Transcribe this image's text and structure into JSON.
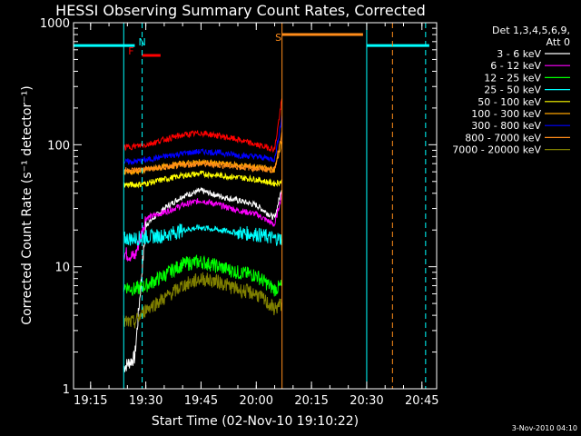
{
  "chart_data": {
    "type": "line",
    "title": "HESSI Observing Summary Count Rates, Corrected",
    "xlabel": "Start Time (02-Nov-10 19:10:22)",
    "ylabel": "Corrected Count Rate (s⁻¹ detector⁻¹)",
    "y_scale": "log",
    "ylim": [
      1,
      1000
    ],
    "xlim": [
      "19:10:22",
      "20:49:00"
    ],
    "x_ticks": [
      "19:15",
      "19:30",
      "19:45",
      "20:00",
      "20:15",
      "20:30",
      "20:45"
    ],
    "y_ticks": [
      "1",
      "10",
      "100",
      "1000"
    ],
    "footer_date": "3-Nov-2010 04:10",
    "legend": {
      "header": [
        "Det 1,3,4,5,6,9,",
        "Att 0"
      ],
      "placement": "top-right outside"
    },
    "series": [
      {
        "name": "3 - 6 keV",
        "color": "#ffffff",
        "x": [
          "19:24",
          "19:27",
          "19:30",
          "19:35",
          "19:40",
          "19:45",
          "19:50",
          "19:55",
          "20:00",
          "20:05",
          "20:07"
        ],
        "values": [
          1.5,
          1.8,
          22,
          30,
          38,
          42,
          38,
          35,
          32,
          25,
          45
        ]
      },
      {
        "name": "6 - 12 keV",
        "color": "#ff00ff",
        "x": [
          "19:24",
          "19:27",
          "19:30",
          "19:35",
          "19:40",
          "19:45",
          "19:50",
          "19:55",
          "20:00",
          "20:05",
          "20:07"
        ],
        "values": [
          13,
          12,
          25,
          28,
          32,
          35,
          32,
          29,
          27,
          22,
          40
        ]
      },
      {
        "name": "12 - 25 keV",
        "color": "#00ff00",
        "x": [
          "19:24",
          "19:27",
          "19:30",
          "19:35",
          "19:40",
          "19:45",
          "19:50",
          "19:55",
          "20:00",
          "20:05",
          "20:07"
        ],
        "values": [
          7,
          6.5,
          7,
          8.5,
          10.5,
          11,
          10,
          9,
          8.5,
          6.5,
          7
        ]
      },
      {
        "name": "25 - 50 keV",
        "color": "#00ffff",
        "x": [
          "19:24",
          "19:27",
          "19:30",
          "19:35",
          "19:40",
          "19:45",
          "19:50",
          "19:55",
          "20:00",
          "20:05",
          "20:07"
        ],
        "values": [
          17,
          17,
          17.5,
          18,
          20,
          21,
          20,
          19,
          18.5,
          17,
          17
        ]
      },
      {
        "name": "50 - 100 keV",
        "color": "#ffff00",
        "x": [
          "19:24",
          "19:27",
          "19:30",
          "19:35",
          "19:40",
          "19:45",
          "19:50",
          "19:55",
          "20:00",
          "20:05",
          "20:07"
        ],
        "values": [
          47,
          47,
          48,
          52,
          56,
          58,
          56,
          54,
          52,
          48,
          50
        ]
      },
      {
        "name": "100 - 300 keV",
        "color": "#ffa500",
        "x": [
          "19:24",
          "19:27",
          "19:30",
          "19:35",
          "19:40",
          "19:45",
          "19:50",
          "19:55",
          "20:00",
          "20:05",
          "20:07"
        ],
        "values": [
          60,
          60,
          62,
          66,
          70,
          72,
          70,
          68,
          66,
          62,
          110
        ]
      },
      {
        "name": "300 - 800 keV",
        "color": "#0000ff",
        "x": [
          "19:24",
          "19:27",
          "19:30",
          "19:35",
          "19:40",
          "19:45",
          "19:50",
          "19:55",
          "20:00",
          "20:05",
          "20:07"
        ],
        "values": [
          72,
          73,
          75,
          80,
          85,
          88,
          86,
          82,
          80,
          76,
          170
        ]
      },
      {
        "name": "800 - 7000 keV",
        "color": "#ff8c1a",
        "x": [
          "19:24",
          "19:27",
          "19:30",
          "19:35",
          "19:40",
          "19:45",
          "19:50",
          "19:55",
          "20:00",
          "20:05",
          "20:07"
        ],
        "values": [
          62,
          62,
          63,
          65,
          68,
          70,
          68,
          66,
          64,
          62,
          130
        ]
      },
      {
        "name": "7000 - 20000 keV",
        "color": "#808000",
        "x": [
          "19:24",
          "19:27",
          "19:30",
          "19:35",
          "19:40",
          "19:45",
          "19:50",
          "19:55",
          "20:00",
          "20:05",
          "20:07"
        ],
        "values": [
          3.5,
          3.5,
          4.5,
          5.5,
          7,
          8,
          7.5,
          6.5,
          6,
          4.5,
          5
        ]
      },
      {
        "name": "",
        "color": "#ff0000",
        "x": [
          "19:24",
          "19:27",
          "19:30",
          "19:35",
          "19:40",
          "19:45",
          "19:50",
          "19:55",
          "20:00",
          "20:05",
          "20:07"
        ],
        "values": [
          95,
          97,
          100,
          110,
          120,
          125,
          118,
          110,
          100,
          92,
          240
        ]
      }
    ],
    "annotations": [
      {
        "text": "F",
        "color": "#ff0000",
        "x": "19:26"
      },
      {
        "text": "N",
        "color": "#00ffff",
        "x": "19:29"
      },
      {
        "text": "S",
        "color": "#ff8c1a",
        "x": "20:06"
      }
    ],
    "flag_bars": [
      {
        "label": "N",
        "color": "#00ffff",
        "x": [
          "19:10:22",
          "19:27"
        ],
        "y": 650
      },
      {
        "label": "F",
        "color": "#ff0000",
        "x": [
          "19:29",
          "19:34"
        ],
        "y": 540
      },
      {
        "label": "S",
        "color": "#ff8c1a",
        "x": [
          "20:07",
          "20:29"
        ],
        "y": 800
      },
      {
        "label": "N",
        "color": "#00ffff",
        "x": [
          "20:30",
          "20:47"
        ],
        "y": 650
      }
    ],
    "vertical_lines": [
      {
        "x": "19:24",
        "color": "#00ffff",
        "style": "solid"
      },
      {
        "x": "19:29",
        "color": "#00ffff",
        "style": "dashed"
      },
      {
        "x": "20:07",
        "color": "#ff8c1a",
        "style": "solid"
      },
      {
        "x": "20:30",
        "color": "#00ffff",
        "style": "solid"
      },
      {
        "x": "20:37",
        "color": "#ff8c1a",
        "style": "dashed"
      },
      {
        "x": "20:46",
        "color": "#00ffff",
        "style": "dashed"
      }
    ]
  }
}
